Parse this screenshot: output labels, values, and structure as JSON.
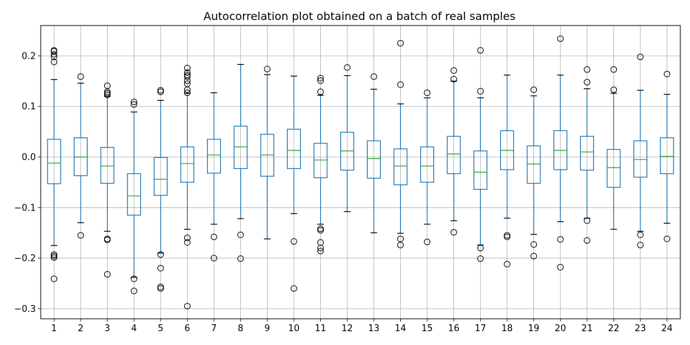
{
  "chart_data": {
    "type": "box",
    "title": "Autocorrelation plot obtained on a batch of real samples",
    "xlabel": "",
    "ylabel": "",
    "ylim": [
      -0.32,
      0.26
    ],
    "yticks": [
      -0.3,
      -0.2,
      -0.1,
      0.0,
      0.1,
      0.2
    ],
    "ytick_labels": [
      "−0.3",
      "−0.2",
      "−0.1",
      "0.0",
      "0.1",
      "0.2"
    ],
    "grid": true,
    "colors": {
      "box": "#1f77b4",
      "median": "#2ca02c",
      "flier": "#000000",
      "grid": "#b0b0b0"
    },
    "categories": [
      "1",
      "2",
      "3",
      "4",
      "5",
      "6",
      "7",
      "8",
      "9",
      "10",
      "11",
      "12",
      "13",
      "14",
      "15",
      "16",
      "17",
      "18",
      "19",
      "20",
      "21",
      "22",
      "23",
      "24"
    ],
    "boxes": [
      {
        "q1": -0.053,
        "median": -0.012,
        "q3": 0.035,
        "whislo": -0.175,
        "whishi": 0.153,
        "fliers": [
          0.211,
          0.209,
          0.203,
          0.198,
          0.188,
          -0.193,
          -0.196,
          -0.199,
          -0.241
        ]
      },
      {
        "q1": -0.037,
        "median": 0.0,
        "q3": 0.038,
        "whislo": -0.13,
        "whishi": 0.146,
        "fliers": [
          0.159,
          -0.155
        ]
      },
      {
        "q1": -0.052,
        "median": -0.018,
        "q3": 0.019,
        "whislo": -0.147,
        "whishi": 0.12,
        "fliers": [
          0.141,
          0.129,
          0.126,
          0.123,
          -0.162,
          -0.164,
          -0.232
        ]
      },
      {
        "q1": -0.115,
        "median": -0.077,
        "q3": -0.033,
        "whislo": -0.238,
        "whishi": 0.089,
        "fliers": [
          0.109,
          0.104,
          -0.241,
          -0.265
        ]
      },
      {
        "q1": -0.076,
        "median": -0.044,
        "q3": -0.001,
        "whislo": -0.19,
        "whishi": 0.112,
        "fliers": [
          0.132,
          0.129,
          -0.193,
          -0.22,
          -0.257,
          -0.26
        ]
      },
      {
        "q1": -0.05,
        "median": -0.013,
        "q3": 0.02,
        "whislo": -0.143,
        "whishi": 0.126,
        "fliers": [
          0.176,
          0.167,
          0.162,
          0.159,
          0.151,
          0.145,
          0.133,
          0.127,
          -0.16,
          -0.169,
          -0.295
        ]
      },
      {
        "q1": -0.032,
        "median": 0.004,
        "q3": 0.035,
        "whislo": -0.133,
        "whishi": 0.127,
        "fliers": [
          -0.158,
          -0.2
        ]
      },
      {
        "q1": -0.023,
        "median": 0.02,
        "q3": 0.061,
        "whislo": -0.122,
        "whishi": 0.183,
        "fliers": [
          -0.154,
          -0.201
        ]
      },
      {
        "q1": -0.038,
        "median": 0.004,
        "q3": 0.045,
        "whislo": -0.162,
        "whishi": 0.163,
        "fliers": [
          0.174
        ]
      },
      {
        "q1": -0.023,
        "median": 0.013,
        "q3": 0.055,
        "whislo": -0.112,
        "whishi": 0.16,
        "fliers": [
          -0.167,
          -0.26
        ]
      },
      {
        "q1": -0.041,
        "median": -0.006,
        "q3": 0.027,
        "whislo": -0.133,
        "whishi": 0.122,
        "fliers": [
          0.156,
          0.151,
          0.129,
          -0.142,
          -0.145,
          -0.169,
          -0.18,
          -0.186
        ]
      },
      {
        "q1": -0.026,
        "median": 0.012,
        "q3": 0.049,
        "whislo": -0.108,
        "whishi": 0.161,
        "fliers": [
          0.177
        ]
      },
      {
        "q1": -0.042,
        "median": -0.003,
        "q3": 0.032,
        "whislo": -0.15,
        "whishi": 0.134,
        "fliers": [
          0.159
        ]
      },
      {
        "q1": -0.055,
        "median": -0.018,
        "q3": 0.016,
        "whislo": -0.151,
        "whishi": 0.105,
        "fliers": [
          0.225,
          0.143,
          -0.162,
          -0.174
        ]
      },
      {
        "q1": -0.05,
        "median": -0.018,
        "q3": 0.02,
        "whislo": -0.133,
        "whishi": 0.117,
        "fliers": [
          0.127,
          -0.168
        ]
      },
      {
        "q1": -0.033,
        "median": 0.006,
        "q3": 0.041,
        "whislo": -0.126,
        "whishi": 0.15,
        "fliers": [
          0.171,
          0.154,
          -0.149
        ]
      },
      {
        "q1": -0.064,
        "median": -0.03,
        "q3": 0.012,
        "whislo": -0.174,
        "whishi": 0.117,
        "fliers": [
          0.211,
          0.13,
          -0.18,
          -0.201
        ]
      },
      {
        "q1": -0.025,
        "median": 0.013,
        "q3": 0.052,
        "whislo": -0.121,
        "whishi": 0.162,
        "fliers": [
          -0.155,
          -0.158,
          -0.212
        ]
      },
      {
        "q1": -0.052,
        "median": -0.014,
        "q3": 0.022,
        "whislo": -0.153,
        "whishi": 0.121,
        "fliers": [
          0.133,
          -0.173,
          -0.196
        ]
      },
      {
        "q1": -0.025,
        "median": 0.013,
        "q3": 0.052,
        "whislo": -0.128,
        "whishi": 0.162,
        "fliers": [
          0.234,
          -0.163,
          -0.218
        ]
      },
      {
        "q1": -0.026,
        "median": 0.01,
        "q3": 0.041,
        "whislo": -0.121,
        "whishi": 0.135,
        "fliers": [
          0.173,
          0.148,
          -0.126,
          -0.165
        ]
      },
      {
        "q1": -0.06,
        "median": -0.021,
        "q3": 0.015,
        "whislo": -0.143,
        "whishi": 0.126,
        "fliers": [
          0.173,
          0.133
        ]
      },
      {
        "q1": -0.04,
        "median": -0.005,
        "q3": 0.032,
        "whislo": -0.147,
        "whishi": 0.132,
        "fliers": [
          0.198,
          -0.154,
          -0.174
        ]
      },
      {
        "q1": -0.033,
        "median": 0.001,
        "q3": 0.038,
        "whislo": -0.131,
        "whishi": 0.124,
        "fliers": [
          0.164,
          -0.162
        ]
      }
    ]
  }
}
